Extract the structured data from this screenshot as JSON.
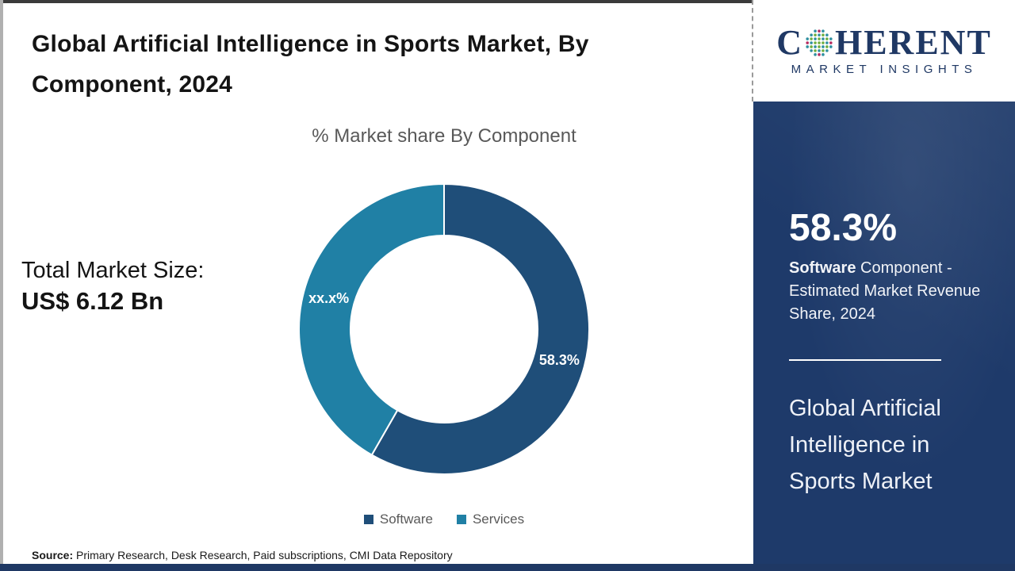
{
  "header": {
    "title": "Global Artificial Intelligence in Sports Market, By Component, 2024"
  },
  "brand": {
    "name_start": "C",
    "name_end": "HERENT",
    "tagline": "MARKET INSIGHTS",
    "navy": "#1f3864"
  },
  "chart_data": {
    "type": "pie",
    "variant": "donut",
    "title": "% Market share By Component",
    "categories": [
      "Software",
      "Services"
    ],
    "values": [
      58.3,
      41.7
    ],
    "labels": [
      "58.3%",
      "xx.x%"
    ],
    "colors": [
      "#1f4e79",
      "#2080a5"
    ],
    "start_angle_deg": 0,
    "direction": "clockwise",
    "inner_radius_ratio": 0.645,
    "legend_position": "bottom"
  },
  "market": {
    "label": "Total Market Size:",
    "value": "US$ 6.12 Bn"
  },
  "sidebar": {
    "stat_value": "58.3%",
    "stat_desc_bold": "Software",
    "stat_desc_rest": " Component - Estimated Market Revenue Share, 2024",
    "panel_title": "Global Artificial Intelligence in Sports Market"
  },
  "footer": {
    "source_label": "Source:",
    "source_text": " Primary Research, Desk Research, Paid subscriptions, CMI Data Repository"
  }
}
